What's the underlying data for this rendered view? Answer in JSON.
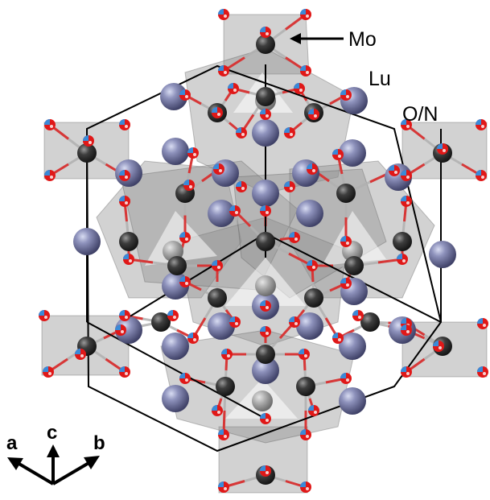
{
  "labels": {
    "mo": "Mo",
    "lu": "Lu",
    "on": "O/N"
  },
  "axes": {
    "a": "a",
    "c": "c",
    "b": "b"
  },
  "colors": {
    "mo_atom": "#3c3c3c",
    "lu_atom": "#7c80a8",
    "o_atom": "#e01818",
    "n_atom": "#3a8ad8",
    "polyhedron": "#8a8a8a",
    "cell_line": "#000000"
  }
}
